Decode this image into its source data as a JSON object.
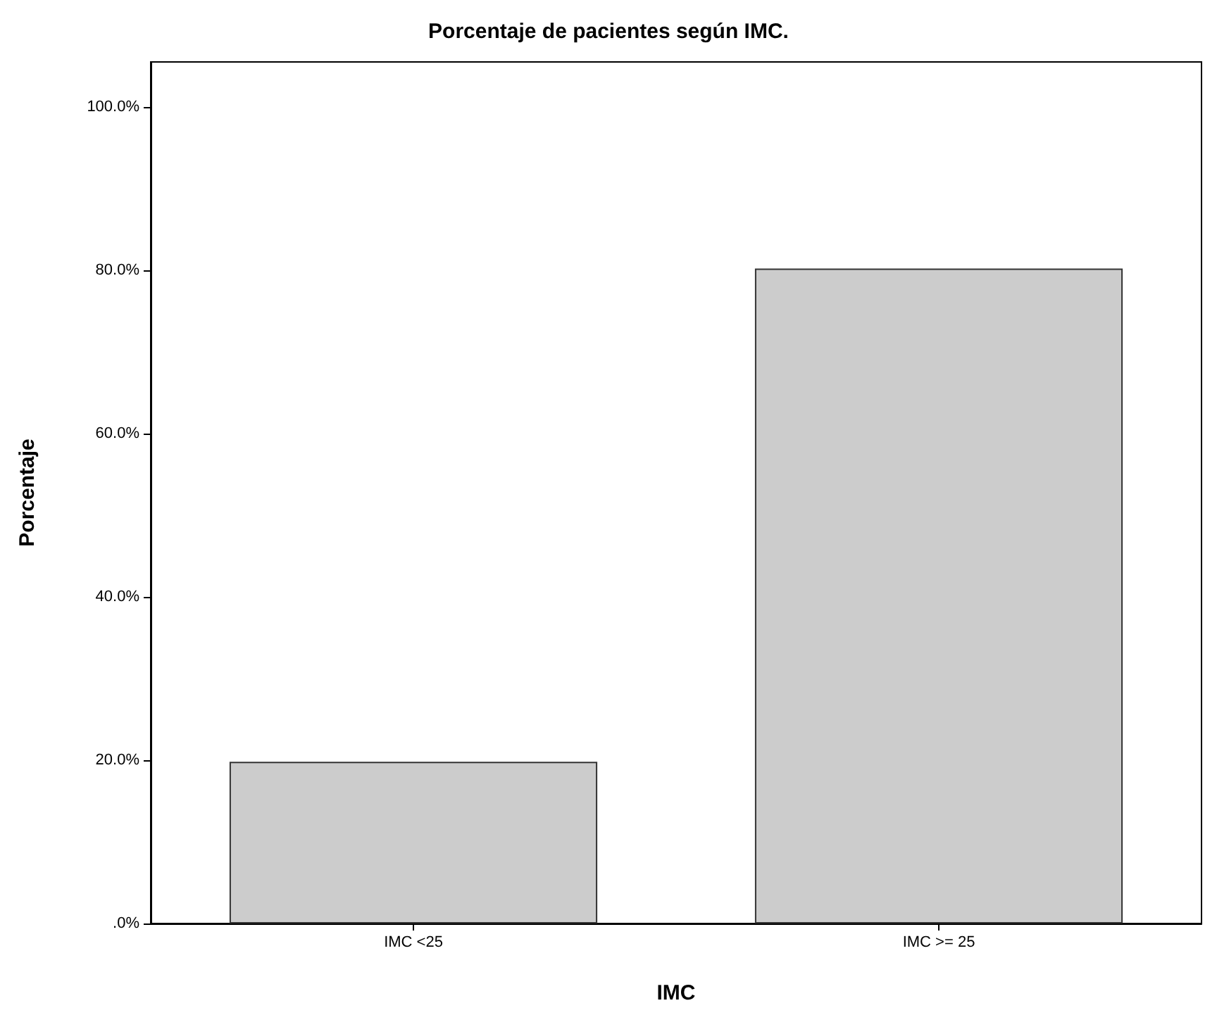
{
  "chart_data": {
    "type": "bar",
    "title": "Porcentaje de pacientes según IMC.",
    "xlabel": "IMC",
    "ylabel": "Porcentaje",
    "categories": [
      "IMC <25",
      "IMC >= 25"
    ],
    "values": [
      19.8,
      80.2
    ],
    "color": "#cccccc",
    "ylim": [
      0,
      105.5
    ],
    "yticks": [
      {
        "value": 0,
        "label": ".0%"
      },
      {
        "value": 20,
        "label": "20.0%"
      },
      {
        "value": 40,
        "label": "40.0%"
      },
      {
        "value": 60,
        "label": "60.0%"
      },
      {
        "value": 80,
        "label": "80.0%"
      },
      {
        "value": 100,
        "label": "100.0%"
      }
    ],
    "grid": false
  }
}
